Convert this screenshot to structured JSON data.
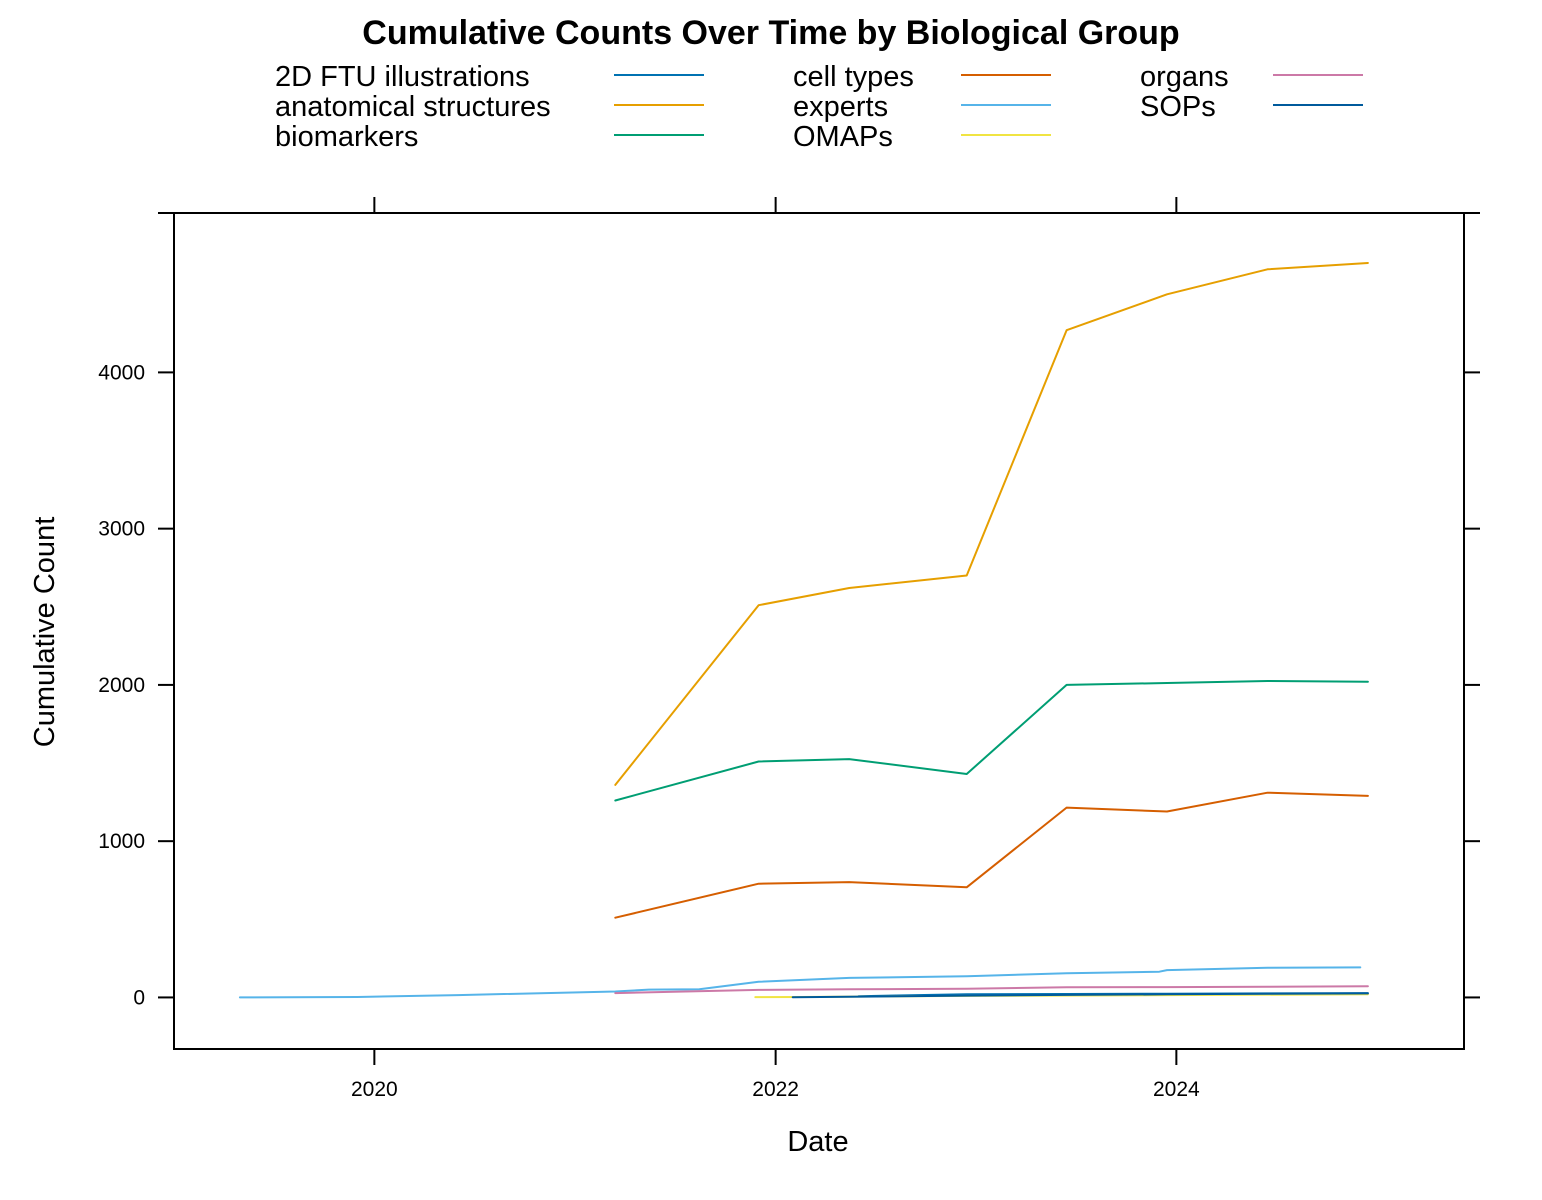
{
  "chart_data": {
    "type": "line",
    "title": "Cumulative Counts Over Time by Biological Group",
    "xlabel": "Date",
    "ylabel": "Cumulative Count",
    "xlim": [
      "2019-01-01",
      "2025-06-08"
    ],
    "ylim": [
      -330,
      5020
    ],
    "x_ticks": [
      "2020-01-01",
      "2022-01-01",
      "2024-01-01"
    ],
    "x_tick_labels": [
      "2020",
      "2022",
      "2024"
    ],
    "y_ticks": [
      0,
      1000,
      2000,
      3000,
      4000
    ],
    "y_tick_labels": [
      "0",
      "1000",
      "2000",
      "3000",
      "4000"
    ],
    "grid": false,
    "legend_position": "top",
    "series": [
      {
        "name": "2D FTU illustrations",
        "color": "#0072B2",
        "points": [
          {
            "x": "2022-06-01",
            "y": 8
          },
          {
            "x": "2022-12-15",
            "y": 20
          },
          {
            "x": "2023-06-15",
            "y": 22
          },
          {
            "x": "2023-12-15",
            "y": 24
          },
          {
            "x": "2024-06-15",
            "y": 26
          },
          {
            "x": "2024-12-15",
            "y": 28
          }
        ]
      },
      {
        "name": "anatomical structures",
        "color": "#E69F00",
        "points": [
          {
            "x": "2021-03-15",
            "y": 1360
          },
          {
            "x": "2021-12-01",
            "y": 2510
          },
          {
            "x": "2022-05-15",
            "y": 2620
          },
          {
            "x": "2022-12-15",
            "y": 2700
          },
          {
            "x": "2023-06-15",
            "y": 4270
          },
          {
            "x": "2023-12-15",
            "y": 4500
          },
          {
            "x": "2024-06-15",
            "y": 4660
          },
          {
            "x": "2024-12-15",
            "y": 4700
          }
        ]
      },
      {
        "name": "biomarkers",
        "color": "#009E73",
        "points": [
          {
            "x": "2021-03-15",
            "y": 1260
          },
          {
            "x": "2021-12-01",
            "y": 1510
          },
          {
            "x": "2022-05-15",
            "y": 1525
          },
          {
            "x": "2022-12-15",
            "y": 1430
          },
          {
            "x": "2023-06-15",
            "y": 2000
          },
          {
            "x": "2023-12-15",
            "y": 2012
          },
          {
            "x": "2024-06-15",
            "y": 2025
          },
          {
            "x": "2024-12-15",
            "y": 2020
          }
        ]
      },
      {
        "name": "cell types",
        "color": "#D55E00",
        "points": [
          {
            "x": "2021-03-15",
            "y": 510
          },
          {
            "x": "2021-12-01",
            "y": 728
          },
          {
            "x": "2022-05-15",
            "y": 738
          },
          {
            "x": "2022-12-15",
            "y": 705
          },
          {
            "x": "2023-06-15",
            "y": 1215
          },
          {
            "x": "2023-12-15",
            "y": 1190
          },
          {
            "x": "2024-06-15",
            "y": 1310
          },
          {
            "x": "2024-12-15",
            "y": 1290
          }
        ]
      },
      {
        "name": "experts",
        "color": "#56B4E9",
        "points": [
          {
            "x": "2019-05-01",
            "y": 0
          },
          {
            "x": "2019-12-01",
            "y": 3
          },
          {
            "x": "2020-06-01",
            "y": 15
          },
          {
            "x": "2021-03-15",
            "y": 38
          },
          {
            "x": "2021-05-15",
            "y": 50
          },
          {
            "x": "2021-08-15",
            "y": 52
          },
          {
            "x": "2021-12-01",
            "y": 100
          },
          {
            "x": "2022-05-15",
            "y": 125
          },
          {
            "x": "2022-12-15",
            "y": 135
          },
          {
            "x": "2023-06-15",
            "y": 155
          },
          {
            "x": "2023-12-01",
            "y": 165
          },
          {
            "x": "2023-12-15",
            "y": 175
          },
          {
            "x": "2024-06-15",
            "y": 190
          },
          {
            "x": "2024-12-01",
            "y": 192
          }
        ]
      },
      {
        "name": "OMAPs",
        "color": "#F0E442",
        "points": [
          {
            "x": "2021-11-25",
            "y": 2
          },
          {
            "x": "2022-02-15",
            "y": 3
          },
          {
            "x": "2022-12-15",
            "y": 10
          },
          {
            "x": "2023-12-15",
            "y": 15
          },
          {
            "x": "2024-12-15",
            "y": 20
          }
        ]
      },
      {
        "name": "organs",
        "color": "#CC79A7",
        "points": [
          {
            "x": "2021-03-15",
            "y": 28
          },
          {
            "x": "2021-12-01",
            "y": 48
          },
          {
            "x": "2022-05-15",
            "y": 52
          },
          {
            "x": "2022-12-15",
            "y": 55
          },
          {
            "x": "2023-06-15",
            "y": 65
          },
          {
            "x": "2023-12-15",
            "y": 66
          },
          {
            "x": "2024-06-15",
            "y": 68
          },
          {
            "x": "2024-12-15",
            "y": 72
          }
        ]
      },
      {
        "name": "SOPs",
        "color": "#005A9C",
        "points": [
          {
            "x": "2022-02-01",
            "y": 1
          },
          {
            "x": "2022-12-15",
            "y": 12
          },
          {
            "x": "2023-06-15",
            "y": 16
          },
          {
            "x": "2023-12-15",
            "y": 20
          },
          {
            "x": "2024-06-15",
            "y": 24
          },
          {
            "x": "2024-12-15",
            "y": 26
          }
        ]
      }
    ]
  }
}
